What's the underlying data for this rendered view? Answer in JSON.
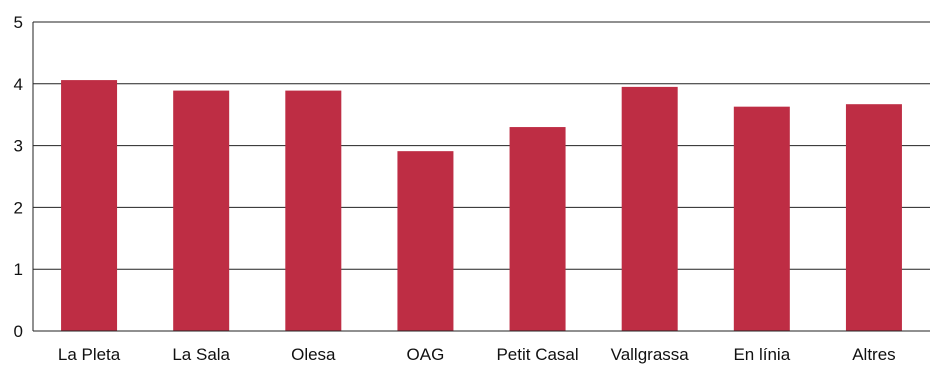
{
  "chart_data": {
    "type": "bar",
    "categories": [
      "La Pleta",
      "La Sala",
      "Olesa",
      "OAG",
      "Petit Casal",
      "Vallgrassa",
      "En línia",
      "Altres"
    ],
    "values": [
      4.06,
      3.89,
      3.89,
      2.91,
      3.3,
      3.95,
      3.63,
      3.67
    ],
    "yticks": [
      "0",
      "1",
      "2",
      "3",
      "4",
      "5"
    ],
    "ylim": [
      0,
      5
    ],
    "grid": true,
    "legend": "none",
    "bar_color": "#be2d44",
    "grid_color": "#222222",
    "axis_color": "#222222"
  }
}
